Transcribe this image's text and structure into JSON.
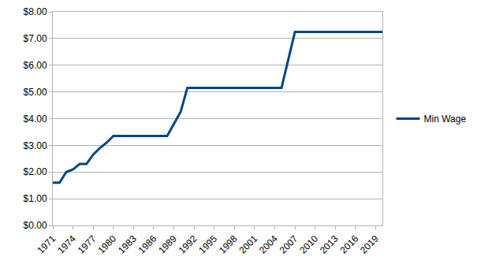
{
  "chart_data": {
    "type": "line",
    "x": [
      1971,
      1972,
      1973,
      1974,
      1975,
      1976,
      1977,
      1978,
      1979,
      1980,
      1981,
      1982,
      1983,
      1984,
      1985,
      1986,
      1987,
      1988,
      1989,
      1990,
      1991,
      1992,
      1993,
      1994,
      1995,
      1996,
      1997,
      1998,
      1999,
      2000,
      2001,
      2002,
      2003,
      2004,
      2005,
      2006,
      2007,
      2008,
      2009,
      2010,
      2011,
      2012,
      2013,
      2014,
      2015,
      2016,
      2017,
      2018,
      2019,
      2020
    ],
    "series": [
      {
        "name": "Min Wage",
        "color": "#004586",
        "values": [
          1.6,
          1.6,
          2.0,
          2.1,
          2.3,
          2.3,
          2.65,
          2.9,
          3.1,
          3.35,
          3.35,
          3.35,
          3.35,
          3.35,
          3.35,
          3.35,
          3.35,
          3.35,
          3.8,
          4.25,
          5.15,
          5.15,
          5.15,
          5.15,
          5.15,
          5.15,
          5.15,
          5.15,
          5.15,
          5.15,
          5.15,
          5.15,
          5.15,
          5.15,
          5.15,
          6.2,
          7.25,
          7.25,
          7.25,
          7.25,
          7.25,
          7.25,
          7.25,
          7.25,
          7.25,
          7.25,
          7.25,
          7.25,
          7.25,
          7.25
        ]
      }
    ],
    "xlim": [
      1971,
      2020
    ],
    "xticks": [
      1971,
      1974,
      1977,
      1980,
      1983,
      1986,
      1989,
      1992,
      1995,
      1998,
      2001,
      2004,
      2007,
      2010,
      2013,
      2016,
      2019
    ],
    "ylim": [
      0,
      8
    ],
    "yticks": [
      {
        "value": 0,
        "label": "$0.00"
      },
      {
        "value": 1,
        "label": "$1.00"
      },
      {
        "value": 2,
        "label": "$2.00"
      },
      {
        "value": 3,
        "label": "$3.00"
      },
      {
        "value": 4,
        "label": "$4.00"
      },
      {
        "value": 5,
        "label": "$5.00"
      },
      {
        "value": 6,
        "label": "$6.00"
      },
      {
        "value": 7,
        "label": "$7.00"
      },
      {
        "value": 8,
        "label": "$8.00"
      }
    ],
    "grid": true,
    "legend": "right"
  }
}
